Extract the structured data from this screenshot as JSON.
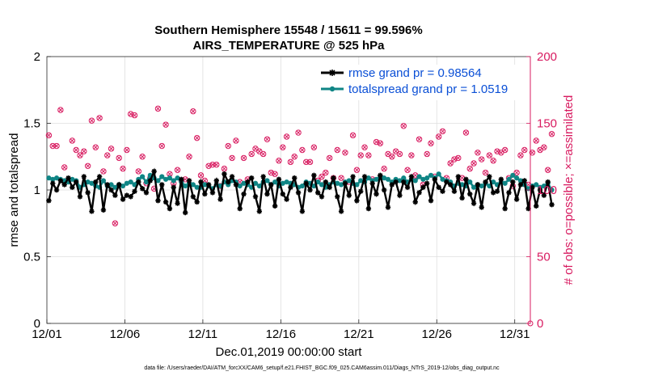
{
  "chart_data": {
    "type": "line",
    "title_line1": "Southern Hemisphere 15548 / 15611 = 99.596%",
    "title_line2": "AIRS_TEMPERATURE @ 525 hPa",
    "xlabel": "Dec.01,2019 00:00:00 start",
    "ylabel_left": "rmse and totalspread",
    "ylabel_right": "# of obs: o=possible; ×=assimilated",
    "footer": "data file: /Users/raeder/DAI/ATM_forcXX/CAM6_setup/f.e21.FHIST_BGC.f09_025.CAM6assim.011/Diags_NTrS_2019-12/obs_diag_output.nc",
    "xlim": [
      0,
      31
    ],
    "ylim_left": [
      0,
      2
    ],
    "ylim_right": [
      0,
      200
    ],
    "x_ticks": [
      0,
      5,
      10,
      15,
      20,
      25,
      30
    ],
    "x_tick_labels": [
      "12/01",
      "12/06",
      "12/11",
      "12/16",
      "12/21",
      "12/26",
      "12/31"
    ],
    "y_ticks_left": [
      0,
      0.5,
      1,
      1.5,
      2
    ],
    "y_tick_labels_left": [
      "0",
      "0.5",
      "1",
      "1.5",
      "2"
    ],
    "y_ticks_right": [
      0,
      50,
      100,
      150,
      200
    ],
    "y_tick_labels_right": [
      "0",
      "50",
      "100",
      "150",
      "200"
    ],
    "grid": true,
    "legend_position": "top-right",
    "colors": {
      "rmse": "#000000",
      "spread": "#0f8585",
      "obs": "#d81b60",
      "legend_text": "#0a4fd6",
      "right_axis": "#d81b60",
      "grid": "#dedede"
    },
    "time_step_days": 0.25,
    "series": [
      {
        "name": "rmse grand pr = 0.98564",
        "axis": "left",
        "values": [
          0.92,
          1.05,
          1.0,
          1.07,
          1.04,
          1.09,
          1.02,
          1.06,
          0.95,
          1.1,
          0.98,
          0.84,
          1.06,
          1.1,
          0.85,
          1.04,
          1.0,
          0.96,
          1.04,
          0.93,
          0.96,
          0.95,
          0.99,
          1.06,
          1.01,
          0.98,
          1.07,
          1.14,
          0.92,
          1.04,
          0.91,
          0.86,
          1.02,
          0.9,
          1.08,
          0.83,
          1.07,
          0.95,
          0.91,
          1.06,
          0.97,
          1.04,
          0.98,
          1.07,
          0.93,
          1.12,
          1.06,
          1.1,
          1.04,
          0.86,
          0.97,
          1.06,
          1.09,
          0.95,
          0.84,
          1.1,
          0.97,
          1.04,
          0.88,
          1.08,
          0.97,
          0.93,
          1.02,
          1.09,
          0.98,
          0.84,
          1.05,
          1.0,
          1.11,
          0.98,
          0.95,
          1.06,
          1.02,
          1.09,
          0.95,
          0.84,
          1.05,
          0.96,
          1.1,
          0.92,
          0.99,
          1.1,
          0.86,
          1.05,
          0.97,
          1.11,
          1.0,
          0.87,
          1.04,
          1.06,
          0.96,
          1.06,
          1.02,
          1.1,
          0.91,
          0.98,
          1.02,
          1.05,
          0.92,
          1.08,
          1.02,
          0.99,
          1.06,
          1.04,
          0.99,
          1.1,
          0.94,
          1.08,
          0.97,
          0.9,
          1.04,
          0.87,
          1.06,
          1.1,
          0.98,
          0.99,
          1.08,
          0.86,
          0.98,
          1.06,
          0.93,
          1.04,
          1.07,
          0.86,
          1.02,
          0.88,
          1.0,
          0.96,
          1.06,
          0.89
        ]
      },
      {
        "name": "totalspread grand pr = 1.0519",
        "axis": "left",
        "values": [
          1.09,
          1.08,
          1.09,
          1.08,
          1.07,
          1.06,
          1.08,
          1.07,
          1.02,
          1.04,
          1.06,
          1.05,
          1.03,
          1.02,
          1.07,
          1.03,
          1.04,
          1.02,
          1.04,
          1.03,
          1.05,
          1.06,
          1.04,
          1.08,
          1.1,
          1.06,
          1.11,
          1.09,
          1.07,
          1.1,
          1.08,
          1.09,
          1.07,
          1.09,
          1.06,
          1.03,
          1.05,
          1.04,
          1.02,
          1.02,
          1.04,
          1.03,
          1.01,
          1.04,
          1.03,
          1.06,
          1.04,
          1.07,
          1.06,
          1.03,
          1.05,
          1.04,
          1.02,
          1.05,
          1.03,
          1.06,
          1.07,
          1.04,
          1.06,
          1.03,
          1.05,
          1.06,
          1.05,
          1.04,
          1.02,
          1.03,
          1.06,
          1.05,
          1.03,
          1.06,
          1.04,
          1.02,
          1.04,
          1.06,
          1.05,
          1.04,
          1.06,
          1.07,
          1.05,
          1.04,
          1.07,
          1.06,
          1.09,
          1.07,
          1.08,
          1.1,
          1.09,
          1.08,
          1.06,
          1.08,
          1.07,
          1.09,
          1.06,
          1.08,
          1.07,
          1.1,
          1.08,
          1.09,
          1.11,
          1.09,
          1.12,
          1.08,
          1.07,
          1.06,
          1.03,
          1.05,
          1.04,
          1.03,
          1.06,
          1.02,
          1.04,
          1.03,
          1.05,
          1.03,
          1.06,
          1.04,
          1.06,
          1.05,
          1.08,
          1.11,
          1.09,
          1.07,
          1.04,
          1.01,
          1.03,
          1.04,
          1.02,
          1.03,
          1.05,
          1.0
        ]
      }
    ],
    "obs_count": {
      "name": "# of obs",
      "axis": "right",
      "values": [
        141,
        133,
        133,
        160,
        117,
        107,
        137,
        130,
        126,
        129,
        118,
        152,
        132,
        154,
        114,
        126,
        131,
        75,
        124,
        116,
        130,
        157,
        156,
        114,
        125,
        105,
        109,
        101,
        161,
        133,
        149,
        112,
        105,
        115,
        107,
        108,
        125,
        159,
        139,
        111,
        107,
        118,
        119,
        119,
        103,
        116,
        133,
        124,
        137,
        106,
        124,
        108,
        127,
        131,
        129,
        127,
        138,
        113,
        112,
        122,
        132,
        140,
        121,
        125,
        143,
        130,
        121,
        121,
        132,
        107,
        110,
        113,
        124,
        109,
        130,
        109,
        128,
        106,
        141,
        115,
        126,
        132,
        126,
        108,
        136,
        135,
        116,
        127,
        125,
        129,
        127,
        148,
        115,
        126,
        111,
        138,
        104,
        127,
        135,
        110,
        140,
        144,
        109,
        120,
        123,
        124,
        109,
        143,
        116,
        120,
        128,
        123,
        113,
        126,
        122,
        129,
        128,
        130,
        109,
        103,
        113,
        126,
        130,
        104,
        128,
        137,
        130,
        132,
        115,
        142
      ]
    }
  }
}
